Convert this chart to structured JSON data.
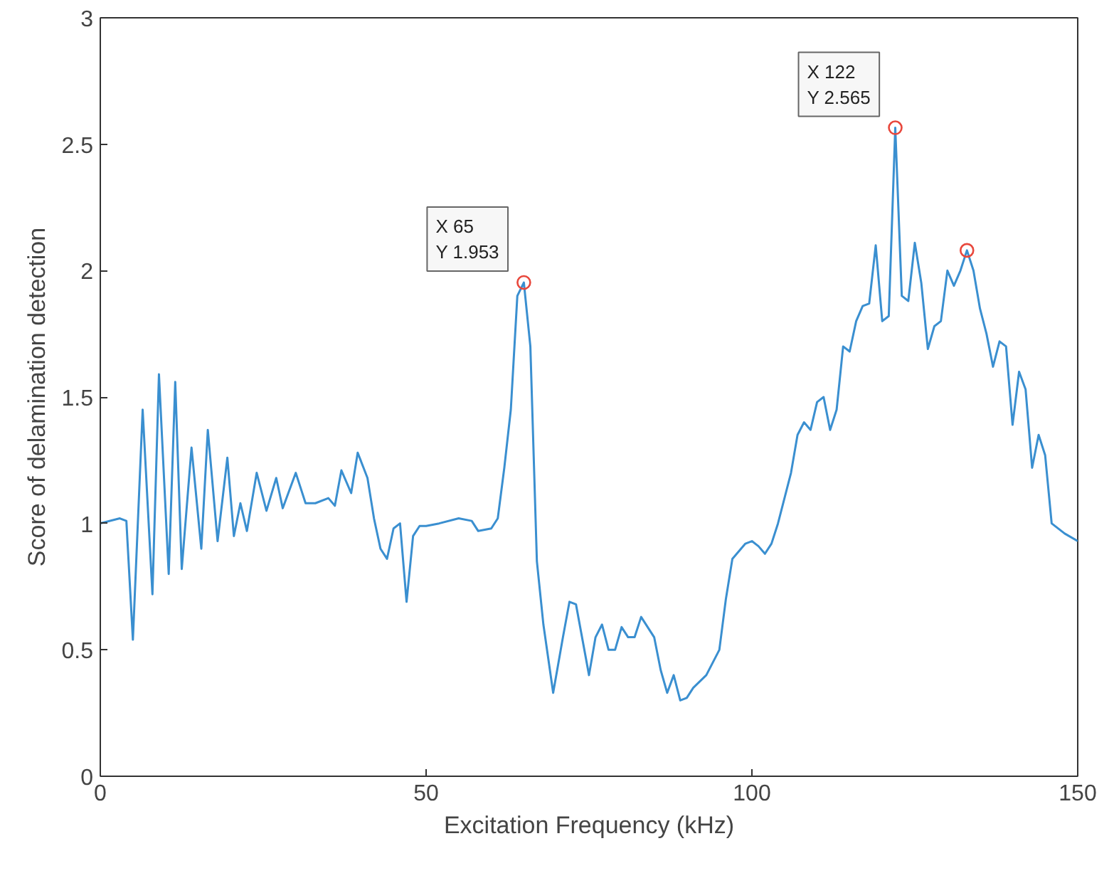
{
  "chart_data": {
    "type": "line",
    "xlabel": "Excitation Frequency (kHz)",
    "ylabel": "Score of delamination detection",
    "xlim": [
      0,
      150
    ],
    "ylim": [
      0,
      3
    ],
    "xticks": [
      0,
      50,
      100,
      150
    ],
    "yticks": [
      0,
      0.5,
      1,
      1.5,
      2,
      2.5,
      3
    ],
    "line_style": "solid",
    "series": [
      {
        "color": "#3a8fd0",
        "x": [
          0,
          3,
          4,
          5,
          6.5,
          8,
          9,
          10.5,
          11.5,
          12.5,
          14,
          15.5,
          16.5,
          18,
          19.5,
          20.5,
          21.5,
          22.5,
          24,
          25.5,
          27,
          28,
          30,
          31.5,
          33,
          35,
          36,
          37,
          38.5,
          39.5,
          41,
          42,
          43,
          44,
          45,
          46,
          47,
          48,
          49,
          50,
          52,
          55,
          57,
          58,
          60,
          61,
          62,
          63,
          64,
          65,
          66,
          67,
          68,
          69.5,
          71,
          72,
          73,
          75,
          76,
          77,
          78,
          79,
          80,
          81,
          82,
          83,
          85,
          86,
          87,
          88,
          89,
          90,
          91,
          93,
          95,
          96,
          97,
          99,
          100,
          101,
          102,
          103,
          104,
          106,
          107,
          108,
          109,
          110,
          111,
          112,
          113,
          114,
          115,
          116,
          117,
          118,
          119,
          120,
          121,
          122,
          123,
          124,
          125,
          126,
          127,
          128,
          129,
          130,
          131,
          132,
          133,
          134,
          135,
          136,
          137,
          138,
          139,
          140,
          141,
          142,
          143,
          144,
          145,
          146,
          148,
          150
        ],
        "values": [
          1.0,
          1.02,
          1.01,
          0.54,
          1.45,
          0.72,
          1.59,
          0.8,
          1.56,
          0.82,
          1.3,
          0.9,
          1.37,
          0.93,
          1.26,
          0.95,
          1.08,
          0.97,
          1.2,
          1.05,
          1.18,
          1.06,
          1.2,
          1.08,
          1.08,
          1.1,
          1.07,
          1.21,
          1.12,
          1.28,
          1.18,
          1.02,
          0.9,
          0.86,
          0.98,
          1.0,
          0.69,
          0.95,
          0.99,
          0.99,
          1.0,
          1.02,
          1.01,
          0.97,
          0.98,
          1.02,
          1.22,
          1.45,
          1.9,
          1.953,
          1.7,
          0.85,
          0.6,
          0.33,
          0.55,
          0.69,
          0.68,
          0.4,
          0.55,
          0.6,
          0.5,
          0.5,
          0.59,
          0.55,
          0.55,
          0.63,
          0.55,
          0.42,
          0.33,
          0.4,
          0.3,
          0.31,
          0.35,
          0.4,
          0.5,
          0.7,
          0.86,
          0.92,
          0.93,
          0.91,
          0.88,
          0.92,
          1.0,
          1.2,
          1.35,
          1.4,
          1.37,
          1.48,
          1.5,
          1.37,
          1.45,
          1.7,
          1.68,
          1.8,
          1.86,
          1.87,
          2.1,
          1.8,
          1.82,
          2.565,
          1.9,
          1.88,
          2.11,
          1.95,
          1.69,
          1.78,
          1.8,
          2.0,
          1.94,
          2.0,
          2.08,
          2.0,
          1.85,
          1.75,
          1.62,
          1.72,
          1.7,
          1.39,
          1.6,
          1.53,
          1.22,
          1.35,
          1.27,
          1.0,
          0.96,
          0.93
        ]
      },
      {
        "type": "scatter",
        "marker": "circle",
        "color": "#e8473c",
        "x": [
          65,
          122,
          133
        ],
        "values": [
          1.953,
          2.565,
          2.08
        ]
      }
    ],
    "annotations": [
      {
        "text": "X 65\nY 1.953",
        "x": 65,
        "y": 1.953
      },
      {
        "text": "X 122\nY 2.565",
        "x": 122,
        "y": 2.565
      }
    ]
  }
}
